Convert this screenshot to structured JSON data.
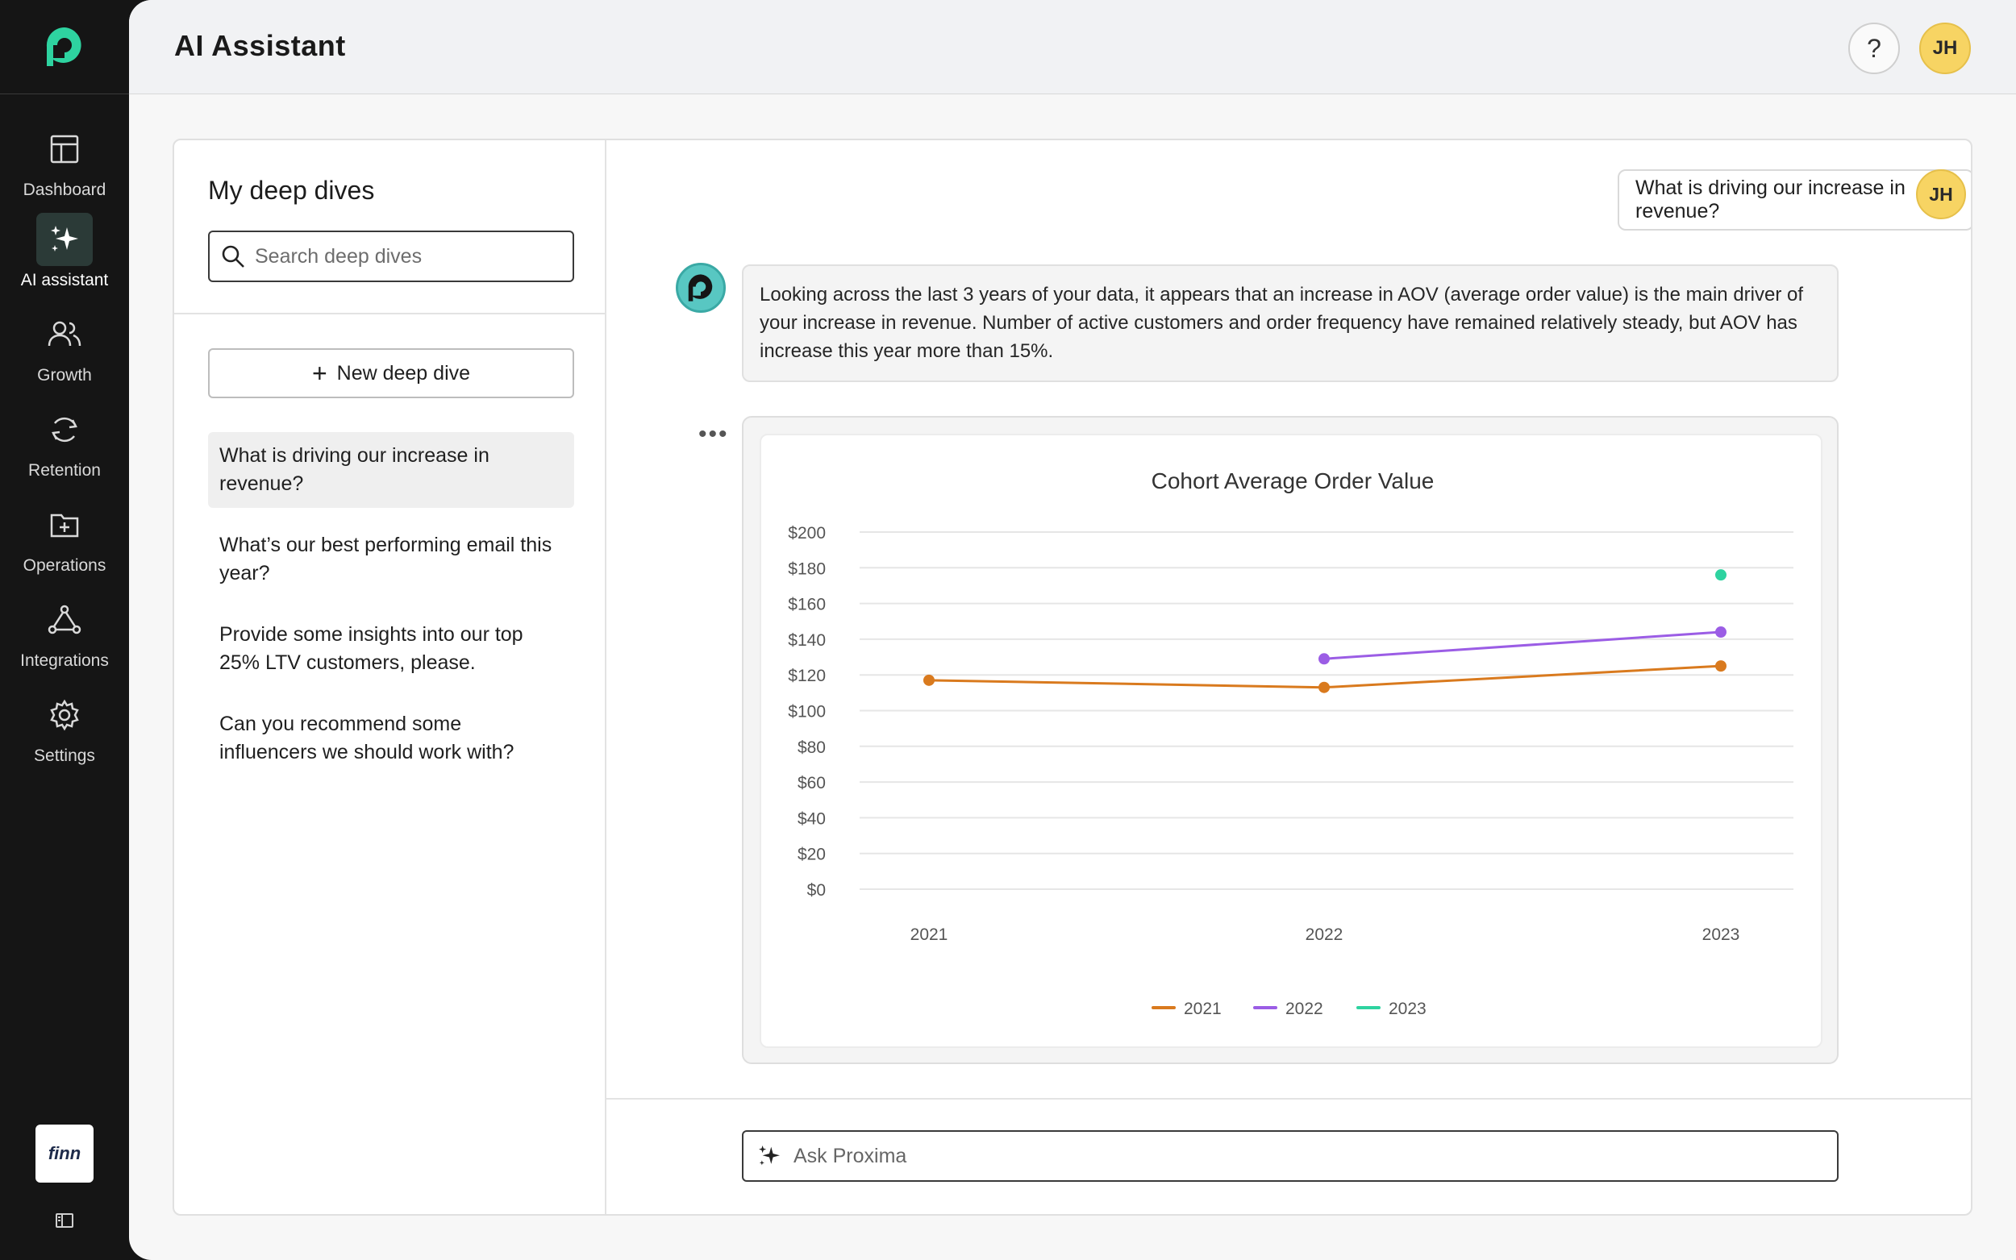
{
  "nav": {
    "items": [
      {
        "label": "Dashboard",
        "icon": "dashboard-icon"
      },
      {
        "label": "AI assistant",
        "icon": "sparkle-icon"
      },
      {
        "label": "Growth",
        "icon": "users-icon"
      },
      {
        "label": "Retention",
        "icon": "refresh-icon"
      },
      {
        "label": "Operations",
        "icon": "folder-plus-icon"
      },
      {
        "label": "Integrations",
        "icon": "network-icon"
      },
      {
        "label": "Settings",
        "icon": "gear-icon"
      }
    ],
    "brand_label": "finn"
  },
  "header": {
    "title": "AI Assistant",
    "help_label": "?",
    "user_initials": "JH"
  },
  "deep_dives": {
    "title": "My deep dives",
    "search_placeholder": "Search deep dives",
    "new_button_label": "New deep dive",
    "items": [
      "What is driving our increase in revenue?",
      "What’s our best performing email this year?",
      "Provide some insights into our top 25% LTV customers, please.",
      "Can you recommend some influencers we should work with?"
    ]
  },
  "chat": {
    "user_question": "What is driving our increase in revenue?",
    "user_initials": "JH",
    "bot_answer": "Looking across the last 3 years of your data, it appears that an increase in AOV (average order value) is the main driver of your increase in revenue. Number of active customers and order frequency have remained relatively steady, but AOV has increase this year more than 15%.",
    "more_label": "•••",
    "ask_placeholder": "Ask Proxima"
  },
  "chart_data": {
    "type": "line",
    "title": "Cohort Average Order Value",
    "categories": [
      "2021",
      "2022",
      "2023"
    ],
    "y_ticks": [
      "$0",
      "$20",
      "$40",
      "$60",
      "$80",
      "$100",
      "$120",
      "$140",
      "$160",
      "$180",
      "$200"
    ],
    "ylim": [
      0,
      200
    ],
    "grid": true,
    "legend_position": "bottom-center",
    "series": [
      {
        "name": "2021",
        "color": "#d97a1e",
        "values": [
          117,
          113,
          125
        ]
      },
      {
        "name": "2022",
        "color": "#9b5de5",
        "values": [
          null,
          129,
          144
        ]
      },
      {
        "name": "2023",
        "color": "#2ed3a0",
        "values": [
          null,
          null,
          176
        ]
      }
    ]
  }
}
